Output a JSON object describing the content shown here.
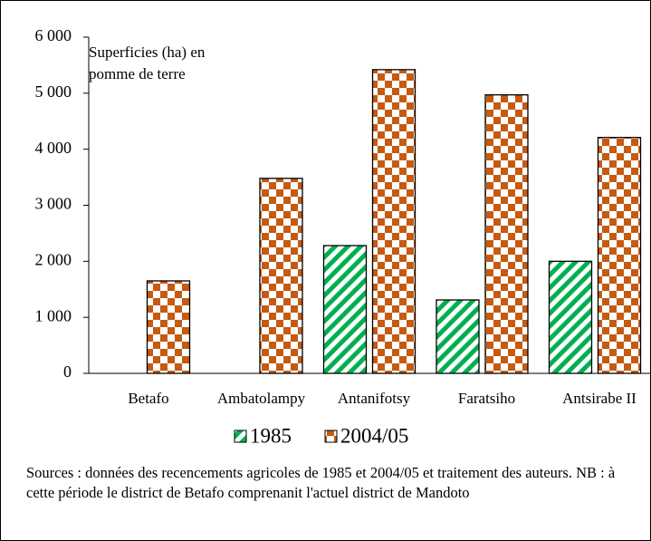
{
  "chart_data": {
    "type": "bar",
    "annotation": [
      "Superficies (ha) en",
      "pomme de terre"
    ],
    "categories": [
      "Betafo",
      "Ambatolampy",
      "Antanifotsy",
      "Faratsiho",
      "Antsirabe II"
    ],
    "series": [
      {
        "name": "1985",
        "color": "#00b050",
        "values": [
          null,
          null,
          2280,
          1310,
          2000
        ]
      },
      {
        "name": "2004/05",
        "color": "#c55a11",
        "values": [
          1650,
          3480,
          5420,
          4970,
          4210
        ]
      }
    ],
    "ylim": [
      0,
      6000
    ],
    "yticks": [
      0,
      {
        "value": 1000,
        "label": "1 000"
      },
      {
        "value": 2000,
        "label": "2 000"
      },
      {
        "value": 3000,
        "label": "3 000"
      },
      {
        "value": 4000,
        "label": "4 000"
      },
      {
        "value": 5000,
        "label": "5 000"
      },
      {
        "value": 6000,
        "label": "6 000"
      }
    ],
    "note": "Sources : données des recencements agricoles de 1985 et 2004/05 et traitement des auteurs. NB : à cette période le district de Betafo comprenanit l'actuel district de Mandoto"
  }
}
